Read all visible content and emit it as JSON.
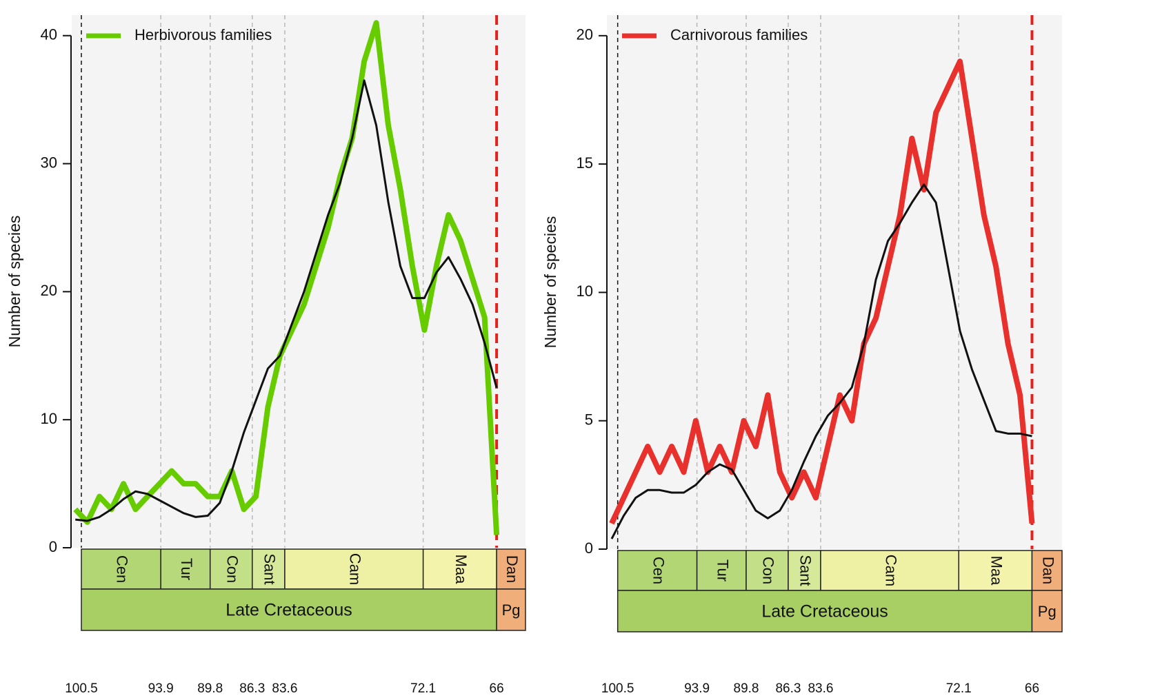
{
  "chart_data": [
    {
      "type": "line",
      "ylabel": "Number of species",
      "x": [
        101,
        100,
        99,
        98,
        97,
        96,
        95,
        94,
        93,
        92,
        91,
        90,
        89,
        88,
        87,
        86,
        85,
        84,
        83,
        82,
        81,
        80,
        79,
        78,
        77,
        76,
        75,
        74,
        73,
        72,
        71,
        70,
        69,
        68,
        67,
        66
      ],
      "series": [
        {
          "name": "Herbivorous families",
          "color": "#66cc00",
          "values": [
            3,
            2,
            4,
            3,
            5,
            3,
            4,
            5,
            6,
            5,
            5,
            4,
            4,
            6,
            3,
            4,
            11,
            15,
            17,
            19,
            22,
            25,
            29,
            32,
            38,
            41,
            33,
            28,
            22,
            17,
            22,
            26,
            24,
            21,
            18,
            1
          ]
        },
        {
          "color": "#111111",
          "values": [
            2.2,
            2.1,
            2.4,
            3,
            3.8,
            4.4,
            4.2,
            3.7,
            3.2,
            2.7,
            2.4,
            2.5,
            3.5,
            6,
            9,
            11.5,
            14,
            15,
            17.5,
            20,
            23,
            26,
            28.5,
            32,
            36.5,
            33,
            27,
            22,
            19.5,
            19.5,
            21.5,
            22.7,
            21,
            19,
            16,
            12.5
          ]
        }
      ],
      "xlim": [
        101.3,
        63.6
      ],
      "ylim": [
        0,
        41.6
      ],
      "xticks": [
        100.5,
        93.9,
        89.8,
        86.3,
        83.6,
        72.1,
        66
      ],
      "yticks": [
        0,
        10,
        20,
        30,
        40
      ],
      "stages": [
        "Cen",
        "Tur",
        "Con",
        "Sant",
        "Cam",
        "Maa",
        "Dan"
      ],
      "stage_colors": [
        "#b3d675",
        "#b8d87c",
        "#c3df88",
        "#d6e99b",
        "#eef1a3",
        "#f3f3ab",
        "#f0ae7a"
      ],
      "periods": [
        "Late Cretaceous",
        "Pg"
      ],
      "period_colors": [
        "#a8cf63",
        "#f0ae7a"
      ],
      "legend": "upper left"
    },
    {
      "type": "line",
      "ylabel": "Number of species",
      "x": [
        101,
        100,
        99,
        98,
        97,
        96,
        95,
        94,
        93,
        92,
        91,
        90,
        89,
        88,
        87,
        86,
        85,
        84,
        83,
        82,
        81,
        80,
        79,
        78,
        77,
        76,
        75,
        74,
        73,
        72,
        71,
        70,
        69,
        68,
        67,
        66
      ],
      "series": [
        {
          "name": "Carnivorous families",
          "color": "#e8302c",
          "values": [
            1,
            2,
            3,
            4,
            3,
            4,
            3,
            5,
            3,
            4,
            3,
            5,
            4,
            6,
            3,
            2,
            3,
            2,
            4,
            6,
            5,
            8,
            9,
            11,
            13,
            16,
            14,
            17,
            18,
            19,
            16,
            13,
            11,
            8,
            6,
            1
          ]
        },
        {
          "color": "#111111",
          "values": [
            0.4,
            1.3,
            2,
            2.3,
            2.3,
            2.2,
            2.2,
            2.5,
            3,
            3.3,
            3.1,
            2.3,
            1.5,
            1.2,
            1.5,
            2.3,
            3.4,
            4.4,
            5.2,
            5.7,
            6.3,
            8,
            10.5,
            12,
            12.7,
            13.5,
            14.2,
            13.5,
            11,
            8.5,
            7,
            5.8,
            4.6,
            4.5,
            4.5,
            4.4
          ]
        }
      ],
      "xlim": [
        101.4,
        63.5
      ],
      "ylim": [
        0,
        20.8
      ],
      "xticks": [
        100.5,
        93.9,
        89.8,
        86.3,
        83.6,
        72.1,
        66
      ],
      "yticks": [
        0,
        5,
        10,
        15,
        20
      ],
      "stages": [
        "Cen",
        "Tur",
        "Con",
        "Sant",
        "Cam",
        "Maa",
        "Dan"
      ],
      "stage_colors": [
        "#b3d675",
        "#b8d87c",
        "#c3df88",
        "#d6e99b",
        "#eef1a3",
        "#f3f3ab",
        "#f0ae7a"
      ],
      "periods": [
        "Late Cretaceous",
        "Pg"
      ],
      "period_colors": [
        "#a8cf63",
        "#f0ae7a"
      ],
      "legend": "upper left"
    }
  ]
}
